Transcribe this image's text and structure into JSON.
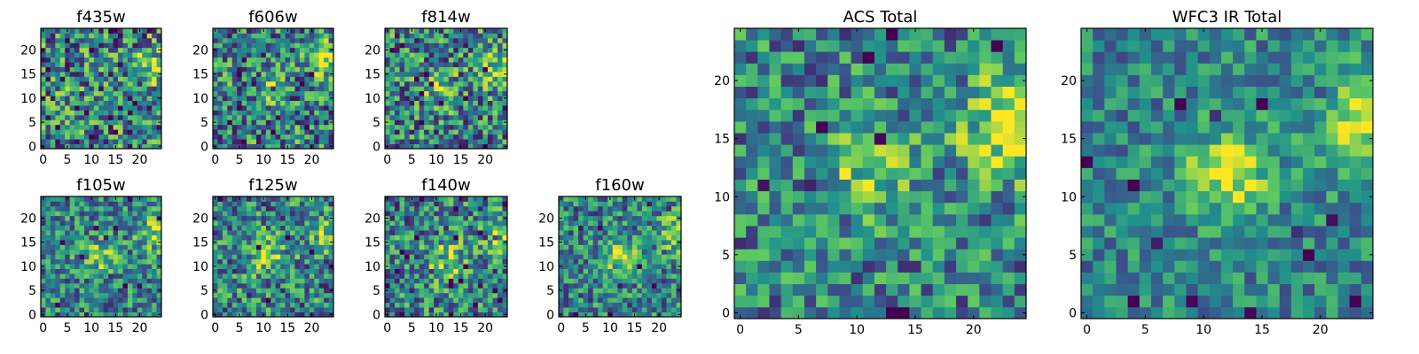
{
  "chart_data": {
    "type": "heatmap",
    "colormap": [
      "#440154",
      "#3b528b",
      "#21918c",
      "#5ec962",
      "#fde725"
    ],
    "grid_size": 25,
    "panels": [
      {
        "id": "f435w",
        "title": "f435w",
        "xticks": [
          0,
          5,
          10,
          15,
          20
        ],
        "yticks": [
          0,
          5,
          10,
          15,
          20
        ],
        "xlim": [
          0,
          24
        ],
        "ylim": [
          0,
          24
        ],
        "seed": 11,
        "blob": {
          "x": 23,
          "y": 17,
          "s": 2.5,
          "a": 0.35
        },
        "noise": 0.55
      },
      {
        "id": "f606w",
        "title": "f606w",
        "xticks": [
          0,
          5,
          10,
          15,
          20
        ],
        "yticks": [
          0,
          5,
          10,
          15,
          20
        ],
        "xlim": [
          0,
          24
        ],
        "ylim": [
          0,
          24
        ],
        "seed": 23,
        "blob": {
          "x": 23,
          "y": 18,
          "s": 2.5,
          "a": 0.45
        },
        "blob2": {
          "x": 11,
          "y": 12,
          "s": 2,
          "a": 0.25
        },
        "noise": 0.5
      },
      {
        "id": "f814w",
        "title": "f814w",
        "xticks": [
          0,
          5,
          10,
          15,
          20
        ],
        "yticks": [
          0,
          5,
          10,
          15,
          20
        ],
        "xlim": [
          0,
          24
        ],
        "ylim": [
          0,
          24
        ],
        "seed": 37,
        "blob": {
          "x": 23,
          "y": 16,
          "s": 2.5,
          "a": 0.4
        },
        "blob2": {
          "x": 11,
          "y": 12,
          "s": 2.5,
          "a": 0.3
        },
        "noise": 0.5
      },
      {
        "id": "f105w",
        "title": "f105w",
        "xticks": [
          0,
          5,
          10,
          15,
          20
        ],
        "yticks": [
          0,
          5,
          10,
          15,
          20
        ],
        "xlim": [
          0,
          24
        ],
        "ylim": [
          0,
          24
        ],
        "seed": 41,
        "blob": {
          "x": 23,
          "y": 17,
          "s": 2.5,
          "a": 0.35
        },
        "blob2": {
          "x": 12,
          "y": 12,
          "s": 2.5,
          "a": 0.3
        },
        "noise": 0.4
      },
      {
        "id": "f125w",
        "title": "f125w",
        "xticks": [
          0,
          5,
          10,
          15,
          20
        ],
        "yticks": [
          0,
          5,
          10,
          15,
          20
        ],
        "xlim": [
          0,
          24
        ],
        "ylim": [
          0,
          24
        ],
        "seed": 53,
        "blob": {
          "x": 23,
          "y": 17,
          "s": 2.5,
          "a": 0.35
        },
        "blob2": {
          "x": 11,
          "y": 12,
          "s": 3,
          "a": 0.3
        },
        "noise": 0.45
      },
      {
        "id": "f140w",
        "title": "f140w",
        "xticks": [
          0,
          5,
          10,
          15,
          20
        ],
        "yticks": [
          0,
          5,
          10,
          15,
          20
        ],
        "xlim": [
          0,
          24
        ],
        "ylim": [
          0,
          24
        ],
        "seed": 67,
        "blob": {
          "x": 23,
          "y": 17,
          "s": 2.5,
          "a": 0.4
        },
        "blob2": {
          "x": 12,
          "y": 11,
          "s": 3,
          "a": 0.3
        },
        "noise": 0.45
      },
      {
        "id": "f160w",
        "title": "f160w",
        "xticks": [
          0,
          5,
          10,
          15,
          20
        ],
        "yticks": [
          0,
          5,
          10,
          15,
          20
        ],
        "xlim": [
          0,
          24
        ],
        "ylim": [
          0,
          24
        ],
        "seed": 79,
        "blob": {
          "x": 24,
          "y": 17,
          "s": 2.5,
          "a": 0.45
        },
        "blob2": {
          "x": 12,
          "y": 12,
          "s": 2.5,
          "a": 0.45
        },
        "noise": 0.4
      },
      {
        "id": "acs_total",
        "title": "ACS Total",
        "xticks": [
          0,
          5,
          10,
          15,
          20
        ],
        "yticks": [
          0,
          5,
          10,
          15,
          20
        ],
        "xlim": [
          0,
          24
        ],
        "ylim": [
          0,
          24
        ],
        "seed": 97,
        "blob": {
          "x": 23,
          "y": 16,
          "s": 3,
          "a": 0.5
        },
        "blob2": {
          "x": 11,
          "y": 12,
          "s": 2.5,
          "a": 0.35
        },
        "noise": 0.4
      },
      {
        "id": "wfc3_ir_total",
        "title": "WFC3 IR Total",
        "xticks": [
          0,
          5,
          10,
          15,
          20
        ],
        "yticks": [
          0,
          5,
          10,
          15,
          20
        ],
        "xlim": [
          0,
          24
        ],
        "ylim": [
          0,
          24
        ],
        "seed": 131,
        "blob": {
          "x": 24,
          "y": 16,
          "s": 3,
          "a": 0.55
        },
        "blob2": {
          "x": 12,
          "y": 12,
          "s": 2.5,
          "a": 0.5
        },
        "noise": 0.3
      }
    ]
  }
}
